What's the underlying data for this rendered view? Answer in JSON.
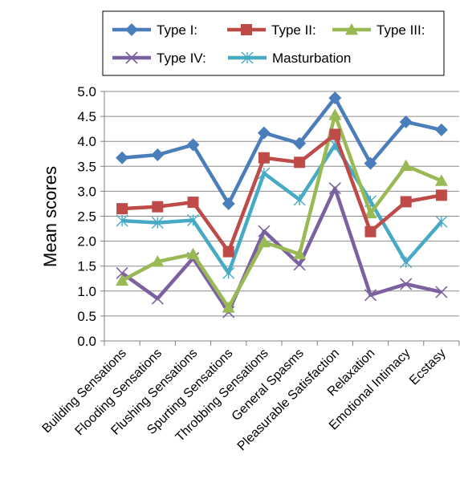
{
  "chart_data": {
    "type": "line",
    "title": "",
    "xlabel": "",
    "ylabel": "Mean  scores",
    "ylim": [
      0,
      5
    ],
    "yticks": [
      "0.0",
      "0.5",
      "1.0",
      "1.5",
      "2.0",
      "2.5",
      "3.0",
      "3.5",
      "4.0",
      "4.5",
      "5.0"
    ],
    "grid": true,
    "legend_position": "top",
    "categories": [
      "Building Sensations",
      "Flooding Sensations",
      "Flushing Sensations",
      "Spurting Sensations",
      "Throbbing Sensations",
      "General Spasms",
      "Pleasurable Satisfaction",
      "Relaxation",
      "Emotional Intimacy",
      "Ecstasy"
    ],
    "series": [
      {
        "name": "Type I:",
        "marker": "diamond",
        "color": "#4a7ebb",
        "values": [
          3.67,
          3.73,
          3.93,
          2.75,
          4.17,
          3.96,
          4.87,
          3.56,
          4.39,
          4.23
        ]
      },
      {
        "name": "Type II:",
        "marker": "square",
        "color": "#be4b48",
        "values": [
          2.65,
          2.69,
          2.78,
          1.79,
          3.67,
          3.58,
          4.14,
          2.19,
          2.79,
          2.92
        ]
      },
      {
        "name": "Type III:",
        "marker": "triangle",
        "color": "#98b954",
        "values": [
          1.21,
          1.59,
          1.74,
          0.67,
          1.98,
          1.74,
          4.53,
          2.56,
          3.51,
          3.21
        ]
      },
      {
        "name": "Type IV:",
        "marker": "x",
        "color": "#7d60a0",
        "values": [
          1.36,
          0.85,
          1.66,
          0.58,
          2.2,
          1.53,
          3.06,
          0.92,
          1.14,
          0.98
        ]
      },
      {
        "name": "Masturbation",
        "marker": "star",
        "color": "#46aac4",
        "values": [
          2.41,
          2.37,
          2.42,
          1.36,
          3.36,
          2.83,
          3.93,
          2.8,
          1.58,
          2.39
        ]
      }
    ]
  }
}
